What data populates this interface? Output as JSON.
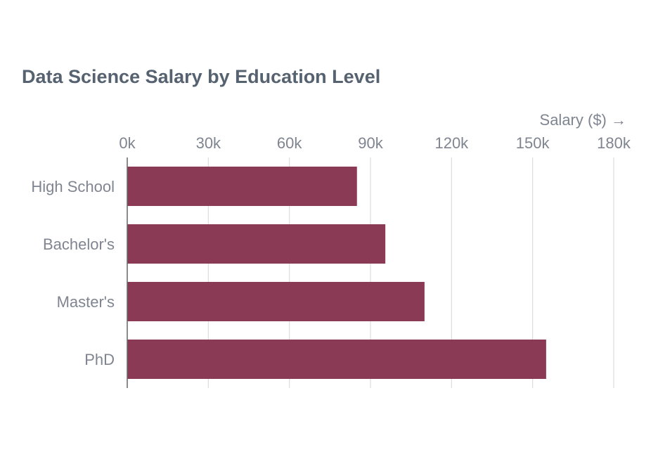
{
  "chart_data": {
    "type": "bar",
    "orientation": "horizontal",
    "title": "Data Science Salary by Education Level",
    "xlabel": "Salary ($) →",
    "ylabel": "",
    "categories": [
      "High School",
      "Bachelor's",
      "Master's",
      "PhD"
    ],
    "values": [
      85000,
      95500,
      110000,
      155000
    ],
    "xlim": [
      0,
      180000
    ],
    "x_ticks": [
      0,
      30000,
      60000,
      90000,
      120000,
      150000,
      180000
    ],
    "x_tick_labels": [
      "0k",
      "30k",
      "60k",
      "90k",
      "120k",
      "150k",
      "180k"
    ],
    "x_axis_position": "top",
    "grid": true,
    "legend": "none",
    "colors": {
      "bar": "#8b3a55",
      "grid": "#dddddd",
      "axis": "#666666",
      "label": "#7f8590",
      "title": "#566270"
    }
  }
}
